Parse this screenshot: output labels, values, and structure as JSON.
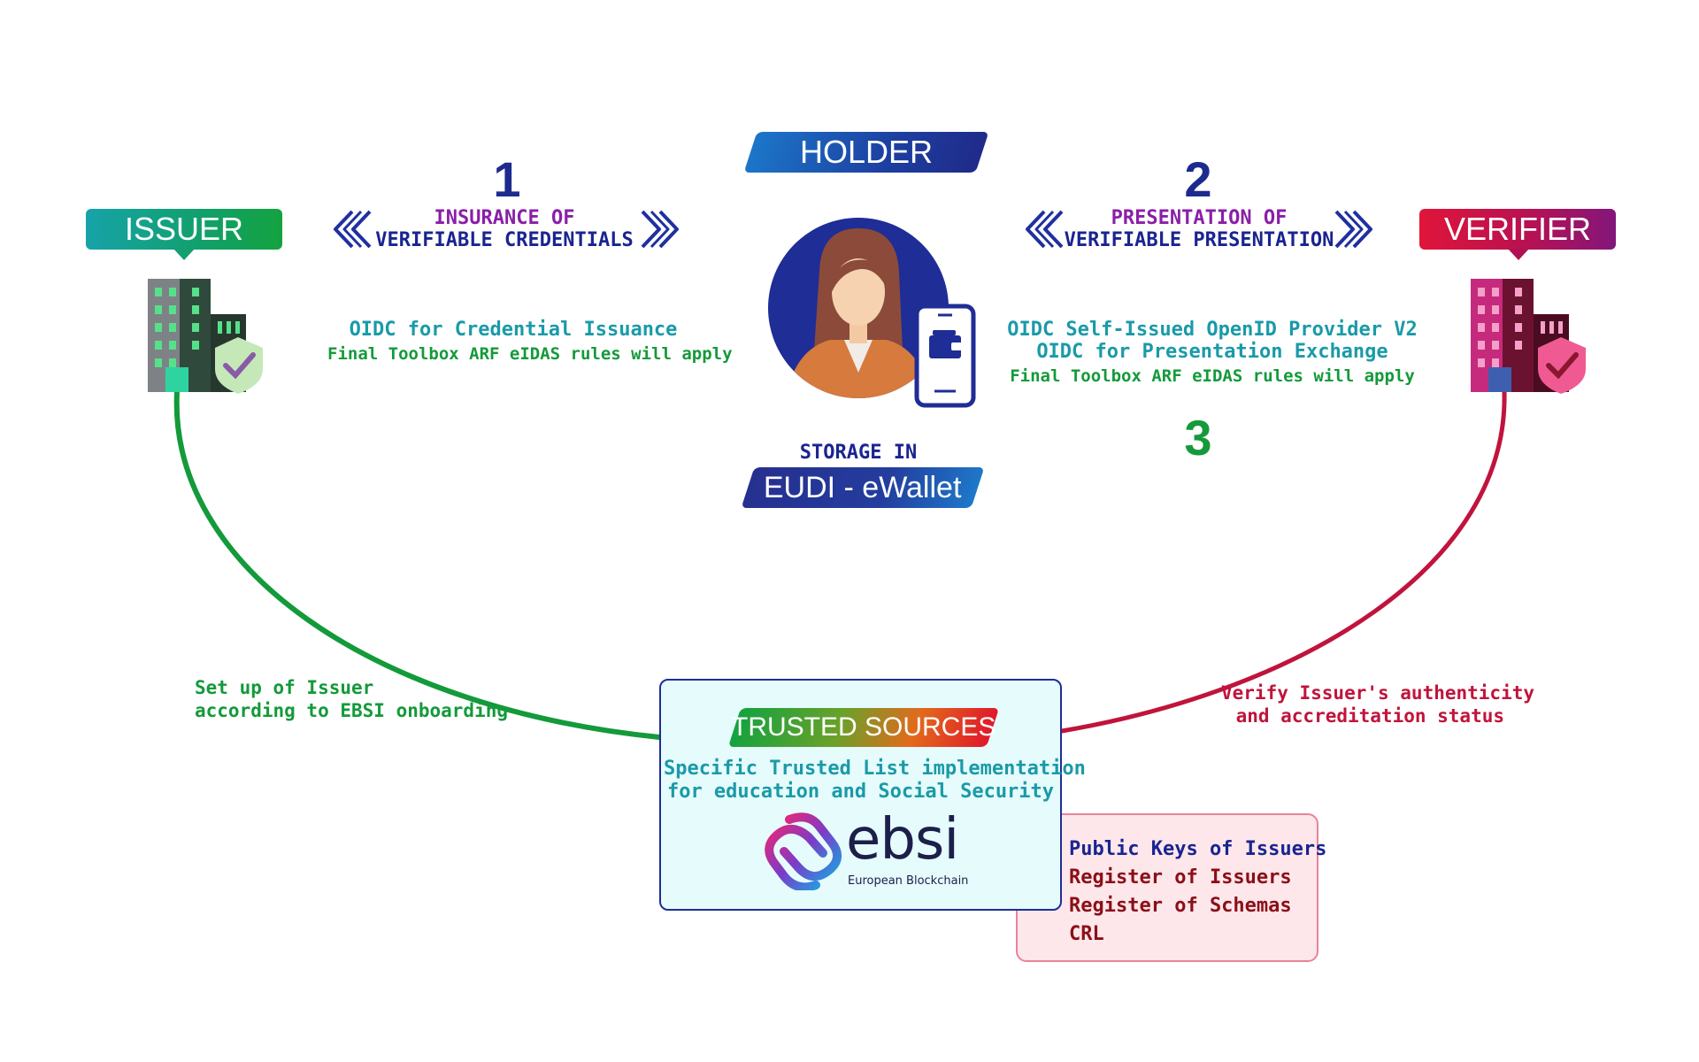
{
  "colors": {
    "issuer": "#139a3a",
    "verifier": "#c0143c",
    "holder": "#1d2b8f",
    "purple": "#8a1fa8",
    "teal": "#1a9aa8",
    "navy": "#1a2490",
    "darkred": "#8b0f18"
  },
  "holder": {
    "label": "HOLDER",
    "storage_label": "STORAGE IN",
    "wallet_label": "EUDI - eWallet"
  },
  "issuer": {
    "label": "ISSUER"
  },
  "verifier": {
    "label": "VERIFIER"
  },
  "step1": {
    "number": "1",
    "title_line1": "INSURANCE OF",
    "title_line2": "VERIFIABLE CREDENTIALS",
    "protocol": "OIDC for Credential Issuance",
    "rules": "Final Toolbox ARF eIDAS rules will apply"
  },
  "step2": {
    "number": "2",
    "title_line1": "PRESENTATION OF",
    "title_line2": "VERIFIABLE PRESENTATION",
    "protocol_line1": "OIDC Self-Issued OpenID Provider V2",
    "protocol_line2": "OIDC for Presentation Exchange",
    "rules": "Final Toolbox ARF eIDAS rules will apply"
  },
  "step3": {
    "number": "3"
  },
  "issuer_setup": {
    "line1": "Set up of Issuer",
    "line2": "according to EBSI onboarding"
  },
  "verify_issuer": {
    "line1": "Verify Issuer's authenticity",
    "line2": "and accreditation status"
  },
  "trusted_sources": {
    "label": "TRUSTED SOURCES",
    "desc_line1": "Specific Trusted List implementation",
    "desc_line2": "for education and Social Security",
    "logo_text": "ebsi",
    "logo_subtext": "European Blockchain"
  },
  "registries": {
    "items": [
      "Public Keys of Issuers",
      "Register of Issuers",
      "Register of Schemas",
      "CRL"
    ]
  },
  "icons": {
    "issuer_building": "building-shield-icon",
    "verifier_building": "building-shield-icon",
    "holder_avatar": "person-avatar-icon",
    "wallet": "phone-wallet-icon",
    "chevrons": "double-chevron-icon"
  }
}
